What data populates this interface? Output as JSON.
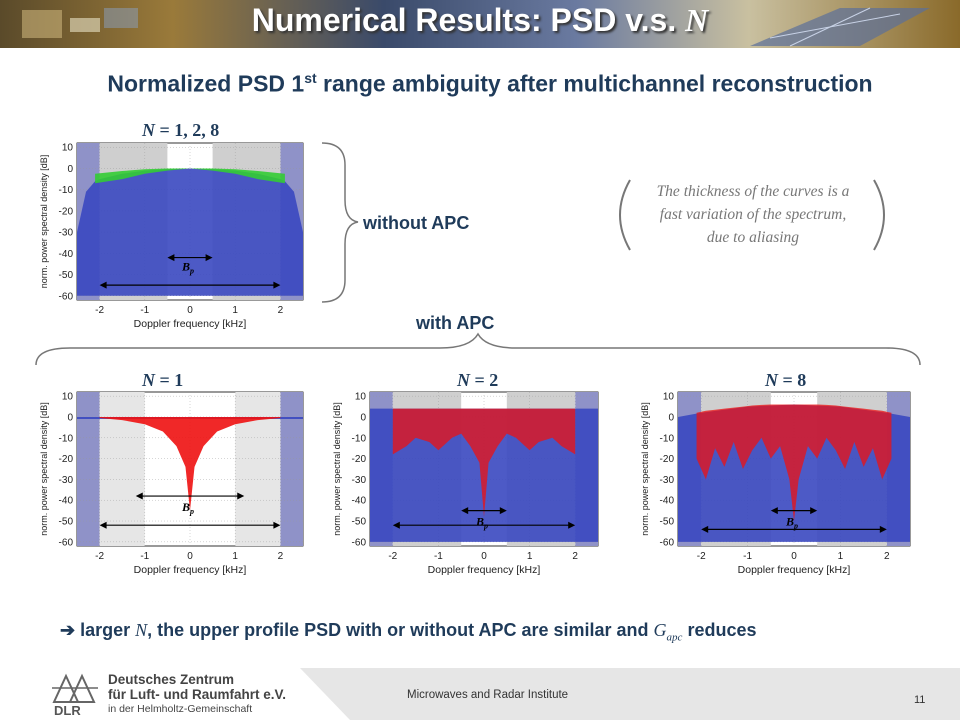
{
  "slide": {
    "title": "Numerical Results: PSD v.s. ",
    "title_var": "N",
    "subtitle_pre": "Normalized PSD 1",
    "subtitle_sup": "st",
    "subtitle_post": " range ambiguity after multichannel reconstruction",
    "without_apc": "without APC",
    "with_apc": "with APC",
    "note_line1": "The thickness of the curves is a",
    "note_line2": "fast variation of the spectrum,",
    "note_line3": "due to aliasing",
    "conclusion_arrow": "➔",
    "conclusion_1": "larger ",
    "conclusion_var1": "N",
    "conclusion_2": ", the upper profile PSD with or without APC are similar and ",
    "conclusion_var2": "G",
    "conclusion_var2_sub": "apc",
    "conclusion_3": " reduces",
    "institute": "Microwaves and Radar Institute",
    "page_number": "11"
  },
  "logo": {
    "name": "DLR",
    "line1": "Deutsches Zentrum",
    "line2": "für Luft- und Raumfahrt e.V.",
    "line3": "in der Helmholtz-Gemeinschaft"
  },
  "colors": {
    "title_text": "#1f3b5a",
    "blue_series": "#3a48c0",
    "green_series": "#33cc33",
    "red_series": "#ee1111",
    "band_blue": "#8f92c8",
    "band_gray": "#cfcfcf"
  },
  "chart_data": [
    {
      "type": "area",
      "label_prefix": "N",
      "label_value": " = 1, 2, 8",
      "xlabel": "Doppler frequency [kHz]",
      "ylabel": "norm. power spectral density [dB]",
      "xlim": [
        -2.5,
        2.5
      ],
      "ylim": [
        -62,
        12
      ],
      "xticks": [
        -2,
        -1,
        0,
        1,
        2
      ],
      "yticks": [
        10,
        0,
        -10,
        -20,
        -30,
        -40,
        -50,
        -60
      ],
      "grid": true,
      "bp_label": "Bp",
      "series": [
        {
          "name": "",
          "color": "blue",
          "x": [
            -2.5,
            -2.3,
            -2.1,
            -2.0,
            -1.5,
            -1.0,
            -0.5,
            0,
            0.5,
            1.0,
            1.5,
            2.0,
            2.1,
            2.3,
            2.5
          ],
          "upper": [
            -30,
            -11,
            -6,
            -5,
            -2.5,
            -1,
            -0.3,
            0,
            -0.3,
            -1,
            -2.5,
            -5,
            -6,
            -11,
            -30
          ],
          "lower": [
            -60,
            -60,
            -60,
            -60,
            -60,
            -60,
            -60,
            -60,
            -60,
            -60,
            -60,
            -60,
            -60,
            -60,
            -60
          ]
        },
        {
          "name": "",
          "color": "green",
          "x": [
            -2.1,
            -1.5,
            -1.0,
            -0.5,
            0,
            0.5,
            1.0,
            1.5,
            2.1
          ],
          "upper": [
            -2.5,
            -1.2,
            -0.4,
            0,
            0,
            0,
            -0.4,
            -1.2,
            -2.5
          ],
          "lower": [
            -7,
            -5,
            -2.5,
            -1,
            0,
            -1,
            -2.5,
            -5,
            -7
          ]
        }
      ]
    },
    {
      "type": "area",
      "label_prefix": "N",
      "label_value": " = 1",
      "xlabel": "Doppler frequency [kHz]",
      "ylabel": "norm. power spectral density [dB]",
      "xlim": [
        -2.5,
        2.5
      ],
      "ylim": [
        -62,
        12
      ],
      "xticks": [
        -2,
        -1,
        0,
        1,
        2
      ],
      "yticks": [
        10,
        0,
        -10,
        -20,
        -30,
        -40,
        -50,
        -60
      ],
      "grid": true,
      "bp_label": "Bp",
      "series": [
        {
          "name": "",
          "color": "blue",
          "x": [
            -2.5,
            -2.0,
            2.0,
            2.5
          ],
          "upper": [
            0,
            0,
            0,
            0
          ],
          "lower": [
            -1,
            -1,
            -1,
            -1
          ]
        },
        {
          "name": "",
          "color": "red",
          "x": [
            -2.0,
            -1.5,
            -1.0,
            -0.6,
            -0.3,
            -0.1,
            0,
            0.1,
            0.3,
            0.6,
            1.0,
            1.5,
            2.0
          ],
          "upper": [
            0,
            0,
            0,
            0,
            0,
            0,
            0,
            0,
            0,
            0,
            0,
            0,
            0
          ],
          "lower": [
            -0.5,
            -1.5,
            -3.5,
            -7,
            -14,
            -24,
            -45,
            -24,
            -14,
            -7,
            -3.5,
            -1.5,
            -0.5
          ]
        }
      ]
    },
    {
      "type": "area",
      "label_prefix": "N",
      "label_value": " = 2",
      "xlabel": "Doppler frequency [kHz]",
      "ylabel": "norm. power spectral density [dB]",
      "xlim": [
        -2.5,
        2.5
      ],
      "ylim": [
        -62,
        12
      ],
      "xticks": [
        -2,
        -1,
        0,
        1,
        2
      ],
      "yticks": [
        10,
        0,
        -10,
        -20,
        -30,
        -40,
        -50,
        -60
      ],
      "grid": true,
      "bp_label": "Bp",
      "series": [
        {
          "name": "",
          "color": "blue",
          "x": [
            -2.5,
            -2.0,
            2.0,
            2.5
          ],
          "upper": [
            4,
            4,
            4,
            4
          ],
          "lower": [
            -60,
            -60,
            -60,
            -60
          ]
        },
        {
          "name": "",
          "color": "red",
          "x": [
            -2.0,
            -1.7,
            -1.5,
            -1.2,
            -1.0,
            -0.7,
            -0.5,
            -0.3,
            -0.1,
            0,
            0.1,
            0.3,
            0.5,
            0.7,
            1.0,
            1.2,
            1.5,
            1.7,
            2.0
          ],
          "upper": [
            4,
            4,
            4,
            4,
            4,
            4,
            4,
            4,
            4,
            4,
            4,
            4,
            4,
            4,
            4,
            4,
            4,
            4,
            4
          ],
          "lower": [
            -18,
            -14,
            -10,
            -12,
            -16,
            -10,
            -8,
            -14,
            -22,
            -48,
            -22,
            -14,
            -8,
            -10,
            -16,
            -12,
            -10,
            -14,
            -18
          ]
        }
      ]
    },
    {
      "type": "area",
      "label_prefix": "N",
      "label_value": " = 8",
      "xlabel": "Doppler frequency [kHz]",
      "ylabel": "norm. power spectral density [dB]",
      "xlim": [
        -2.5,
        2.5
      ],
      "ylim": [
        -62,
        12
      ],
      "xticks": [
        -2,
        -1,
        0,
        1,
        2
      ],
      "yticks": [
        10,
        0,
        -10,
        -20,
        -30,
        -40,
        -50,
        -60
      ],
      "grid": true,
      "bp_label": "Bp",
      "series": [
        {
          "name": "",
          "color": "blue",
          "x": [
            -2.5,
            -2.0,
            -1.0,
            0,
            1.0,
            2.0,
            2.5
          ],
          "upper": [
            0,
            2,
            5,
            6,
            5,
            2,
            0
          ],
          "lower": [
            -60,
            -60,
            -60,
            -60,
            -60,
            -60,
            -60
          ]
        },
        {
          "name": "",
          "color": "red",
          "x": [
            -2.1,
            -1.9,
            -1.7,
            -1.5,
            -1.3,
            -1.1,
            -0.9,
            -0.7,
            -0.5,
            -0.3,
            -0.1,
            0,
            0.1,
            0.3,
            0.5,
            0.7,
            0.9,
            1.1,
            1.3,
            1.5,
            1.7,
            1.9,
            2.1
          ],
          "upper": [
            2,
            3,
            3.5,
            4,
            4.5,
            5,
            5.5,
            5.8,
            6,
            6,
            6,
            6,
            6,
            6,
            6,
            5.8,
            5.5,
            5,
            4.5,
            4,
            3.5,
            3,
            2
          ],
          "lower": [
            -20,
            -30,
            -15,
            -24,
            -12,
            -25,
            -16,
            -10,
            -20,
            -14,
            -30,
            -50,
            -30,
            -14,
            -20,
            -10,
            -16,
            -25,
            -12,
            -24,
            -15,
            -30,
            -20
          ]
        }
      ]
    }
  ]
}
